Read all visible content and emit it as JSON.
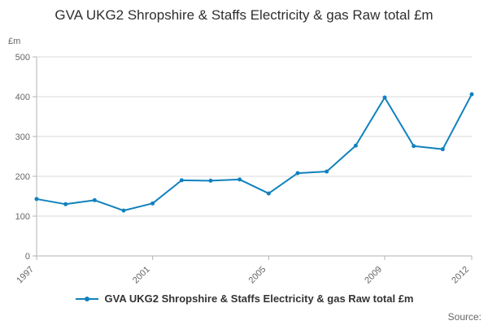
{
  "title": "GVA UKG2 Shropshire & Staffs Electricity & gas Raw total £m",
  "legend_label": "GVA UKG2 Shropshire & Staffs Electricity & gas Raw total £m",
  "source_label": "Source:",
  "chart_data": {
    "type": "line",
    "title": "GVA UKG2 Shropshire & Staffs Electricity & gas Raw total £m",
    "xlabel": "",
    "ylabel": "£m",
    "x": [
      1997,
      1998,
      1999,
      2000,
      2001,
      2002,
      2003,
      2004,
      2005,
      2006,
      2007,
      2008,
      2009,
      2010,
      2011,
      2012
    ],
    "values": [
      143,
      130,
      140,
      114,
      132,
      190,
      189,
      192,
      157,
      208,
      212,
      277,
      398,
      276,
      268,
      406
    ],
    "ylim": [
      0,
      500
    ],
    "yticks": [
      0,
      100,
      200,
      300,
      400,
      500
    ],
    "xtick_labels": [
      "1997",
      "2001",
      "2005",
      "2009",
      "2012"
    ],
    "grid": true,
    "legend_position": "bottom",
    "colors": {
      "line": "#1082be",
      "grid": "#d9d9d9",
      "axis": "#b3b3b3",
      "tick_label": "#666666",
      "title": "#2f2f2f"
    }
  }
}
